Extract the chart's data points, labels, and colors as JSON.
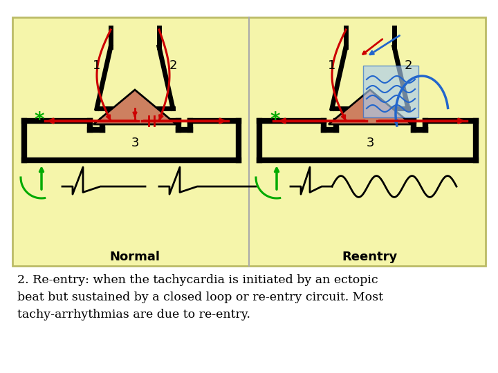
{
  "bg_color": "#ffffff",
  "panel_bg": "#f5f5aa",
  "title_line1": "2. Re-entry: when the tachycardia is initiated by an ectopic",
  "title_line2": "beat but sustained by a closed loop or re-entry circuit. Most",
  "title_line3": "tachy-arrhythmias are due to re-entry.",
  "normal_label": "Normal",
  "reentry_label": "Reentry",
  "star_color": "#00aa00",
  "arrow_red": "#cc0000",
  "arrow_blue": "#2266cc",
  "triangle_color": "#cd8060",
  "black_color": "#000000",
  "green_color": "#00aa00",
  "fig_width": 7.2,
  "fig_height": 5.4,
  "dpi": 100
}
